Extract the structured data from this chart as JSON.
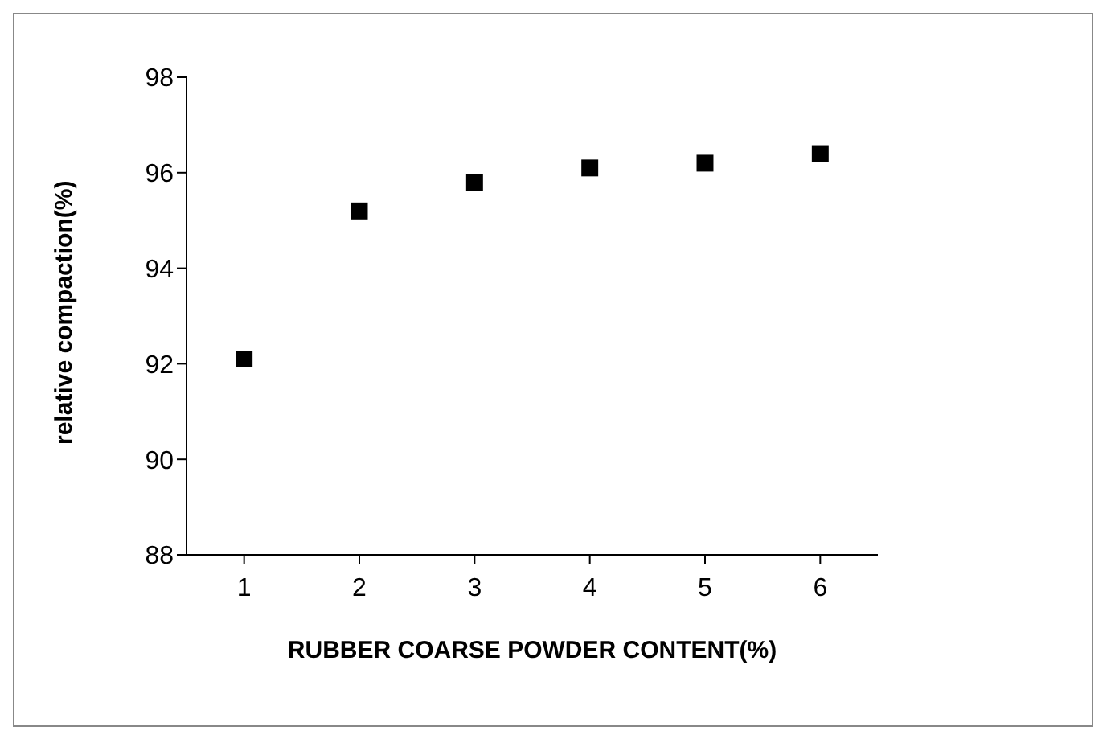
{
  "chart_data": {
    "type": "scatter",
    "xlabel": "RUBBER COARSE POWDER CONTENT(%)",
    "ylabel": "relative compaction(%)",
    "categories": [
      "1",
      "2",
      "3",
      "4",
      "5",
      "6"
    ],
    "series": [
      {
        "color": "#000000",
        "values": [
          92.1,
          95.2,
          95.8,
          96.1,
          96.2,
          96.4
        ]
      }
    ],
    "ylim": [
      88,
      98
    ],
    "yticks": [
      88,
      90,
      92,
      94,
      96,
      98
    ],
    "grid": false,
    "legend": false,
    "marker": "square"
  }
}
